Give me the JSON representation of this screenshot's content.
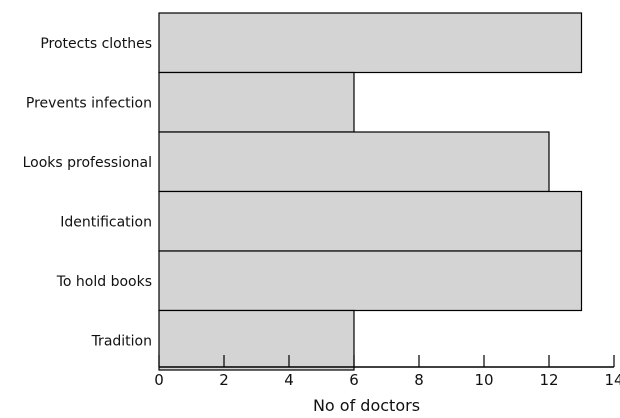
{
  "chart_data": {
    "type": "bar",
    "orientation": "horizontal",
    "title": "",
    "xlabel": "No of doctors",
    "ylabel": "",
    "categories": [
      "Protects clothes",
      "Prevents infection",
      "Looks professional",
      "Identification",
      "To hold books",
      "Tradition"
    ],
    "values": [
      13,
      6,
      12,
      13,
      13,
      6
    ],
    "xlim": [
      0,
      14
    ],
    "xticks": [
      "0",
      "2",
      "4",
      "6",
      "8",
      "10",
      "12",
      "14"
    ],
    "grid": false,
    "bar_color": "#d4d4d4",
    "edge_color": "#000000"
  }
}
